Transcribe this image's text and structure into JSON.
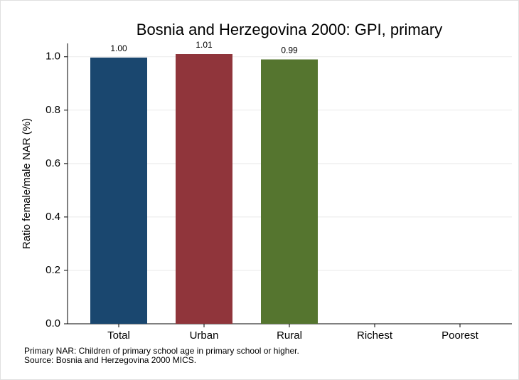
{
  "chart_data": {
    "type": "bar",
    "title": "Bosnia and Herzegovina 2000: GPI, primary",
    "y_label": "Ratio female/male NAR (%)",
    "categories": [
      "Total",
      "Urban",
      "Rural",
      "Richest",
      "Poorest"
    ],
    "values": [
      0.997,
      1.01,
      0.99,
      null,
      null
    ],
    "value_labels": [
      "1.00",
      "1.01",
      "0.99",
      null,
      null
    ],
    "colors": [
      "#1a476f",
      "#90353b",
      "#55752f",
      null,
      null
    ],
    "ylim": [
      0,
      1.05
    ],
    "yticks": [
      {
        "value": 0,
        "label": "0.0"
      },
      0.2,
      0.4,
      0.6,
      0.8,
      {
        "value": 1,
        "label": "1.0"
      }
    ],
    "grid": true,
    "notes": [
      "Primary NAR: Children of primary school age in primary school or higher.",
      "Source: Bosnia and Herzegovina 2000 MICS."
    ]
  }
}
